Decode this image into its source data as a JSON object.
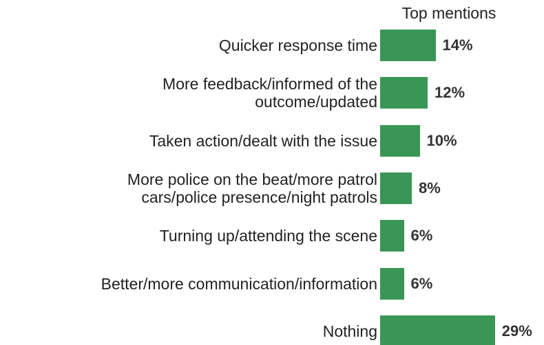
{
  "chart_data": {
    "type": "bar",
    "orientation": "horizontal",
    "title": "Top mentions",
    "categories": [
      "Quicker response time",
      "More feedback/informed of the\noutcome/updated",
      "Taken action/dealt with the issue",
      "More police on the beat/more patrol\ncars/police presence/night patrols",
      "Turning up/attending the scene",
      "Better/more communication/information",
      "Nothing"
    ],
    "values": [
      14,
      12,
      10,
      8,
      6,
      6,
      29
    ],
    "value_labels": [
      "14%",
      "12%",
      "10%",
      "8%",
      "6%",
      "6%",
      "29%"
    ],
    "color": "#3a9656"
  }
}
